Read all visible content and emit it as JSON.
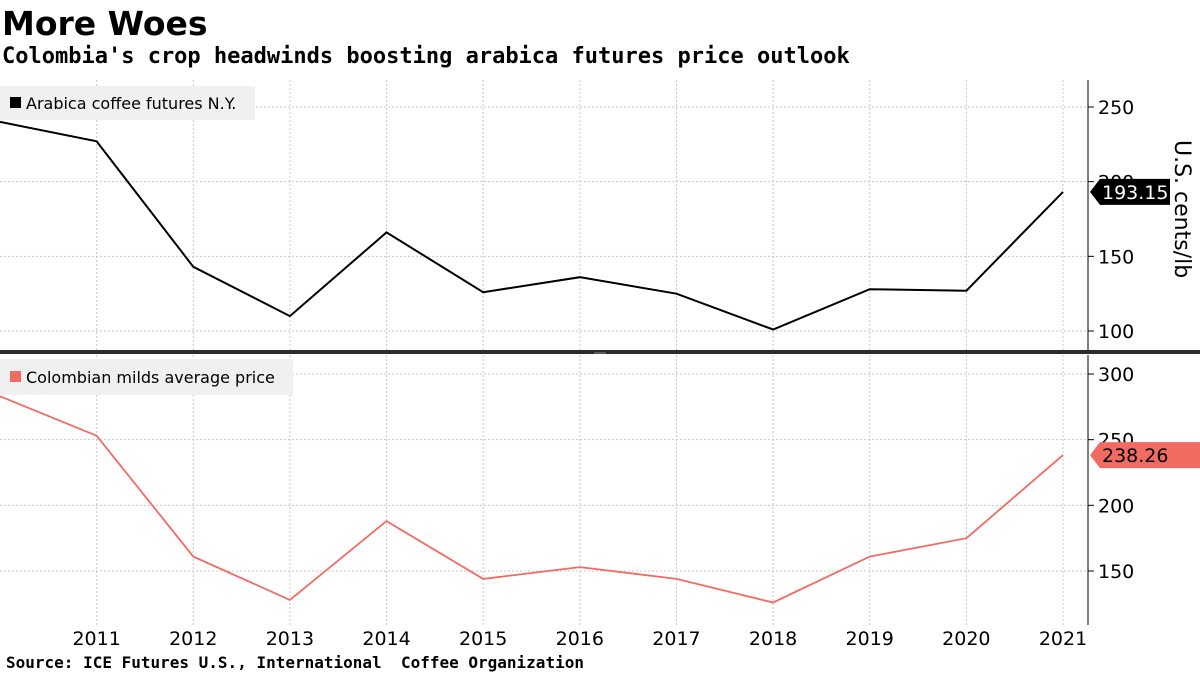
{
  "header": {
    "title": "More Woes",
    "subtitle": "Colombia's crop headwinds boosting arabica futures price outlook"
  },
  "footer": {
    "source": "Source: ICE Futures U.S., International  Coffee Organization"
  },
  "chart_data": [
    {
      "type": "line",
      "title": "",
      "xlabel": "",
      "ylabel": "U.S. cents/lb",
      "legend": "top-left",
      "grid": true,
      "ylim": [
        90,
        270
      ],
      "yticks": [
        100,
        150,
        200,
        250
      ],
      "color": "#000000",
      "series": [
        {
          "name": "Arabica coffee futures N.Y.",
          "x": [
            2010,
            2011,
            2012,
            2013,
            2014,
            2015,
            2016,
            2017,
            2018,
            2019,
            2020,
            2021
          ],
          "values": [
            240,
            227,
            143,
            110,
            166,
            126,
            136,
            125,
            101,
            128,
            127,
            193.15
          ]
        }
      ],
      "last_value_label": "193.15"
    },
    {
      "type": "line",
      "title": "",
      "xlabel": "",
      "ylabel": "",
      "legend": "top-left",
      "grid": true,
      "ylim": [
        115,
        310
      ],
      "yticks": [
        150,
        200,
        250,
        300
      ],
      "color": "#f26b63",
      "series": [
        {
          "name": "Colombian milds average price",
          "x": [
            2010,
            2011,
            2012,
            2013,
            2014,
            2015,
            2016,
            2017,
            2018,
            2019,
            2020,
            2021
          ],
          "values": [
            283,
            253,
            161,
            128,
            188,
            144,
            153,
            144,
            126,
            161,
            175,
            238.26
          ]
        }
      ],
      "last_value_label": "238.26"
    }
  ],
  "x_axis": {
    "ticks": [
      "2011",
      "2012",
      "2013",
      "2014",
      "2015",
      "2016",
      "2017",
      "2018",
      "2019",
      "2020",
      "2021"
    ]
  }
}
